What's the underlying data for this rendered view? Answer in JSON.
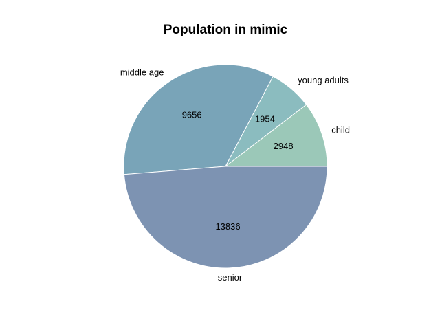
{
  "chart_data": {
    "type": "pie",
    "title": "Population in mimic",
    "categories": [
      "child",
      "young adults",
      "middle age",
      "senior"
    ],
    "values": [
      2948,
      1954,
      9656,
      13836
    ],
    "colors": [
      "#9bc8b8",
      "#8bbcbf",
      "#79a4b8",
      "#7d93b2"
    ],
    "start_angle_deg": 0,
    "direction": "counterclockwise",
    "legend": "none"
  }
}
